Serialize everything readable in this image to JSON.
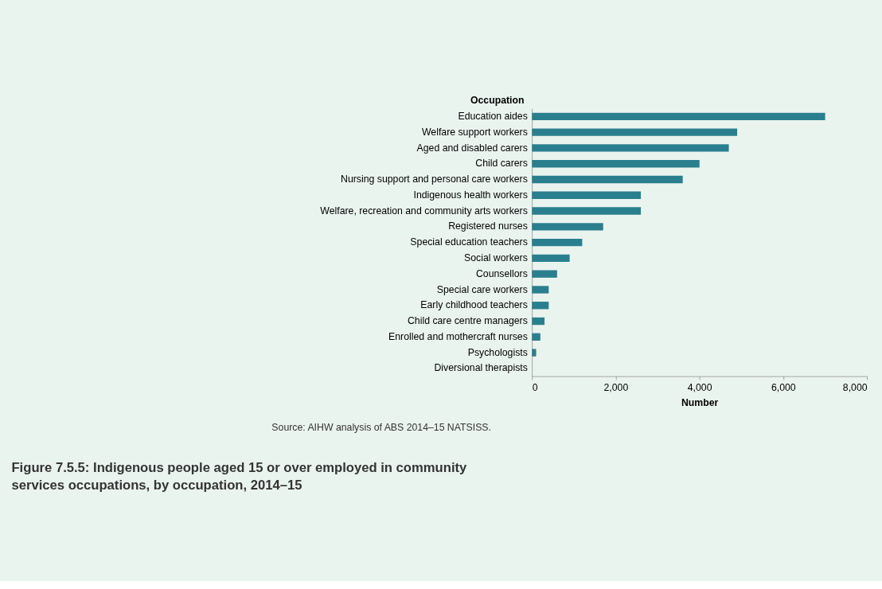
{
  "chart_data": {
    "type": "bar",
    "orientation": "horizontal",
    "title": "Figure 7.5.5: Indigenous people aged 15 or over employed in community services occupations, by occupation, 2014–15",
    "xlabel": "Number",
    "ylabel": "Occupation",
    "categories": [
      "Education aides",
      "Welfare support workers",
      "Aged and disabled carers",
      "Child carers",
      "Nursing support and personal care workers",
      "Indigenous health workers",
      "Welfare, recreation and community arts workers",
      "Registered nurses",
      "Special education teachers",
      "Social workers",
      "Counsellors",
      "Special care workers",
      "Early childhood teachers",
      "Child care centre managers",
      "Enrolled and mothercraft nurses",
      "Psychologists",
      "Diversional therapists"
    ],
    "values": [
      7000,
      4900,
      4700,
      4000,
      3600,
      2600,
      2600,
      1700,
      1200,
      900,
      600,
      400,
      400,
      300,
      200,
      100,
      0
    ],
    "color": "#2a7f8e",
    "xlim": [
      0,
      8000
    ],
    "xticks": [
      0,
      {
        "value": 2000,
        "label": "2,000"
      },
      {
        "value": 4000,
        "label": "4,000"
      },
      {
        "value": 6000,
        "label": "6,000"
      },
      {
        "value": 8000,
        "label": "8,000"
      }
    ],
    "grid": false,
    "annotations": [
      "Source: AIHW analysis of ABS 2014–15 NATSISS."
    ]
  }
}
